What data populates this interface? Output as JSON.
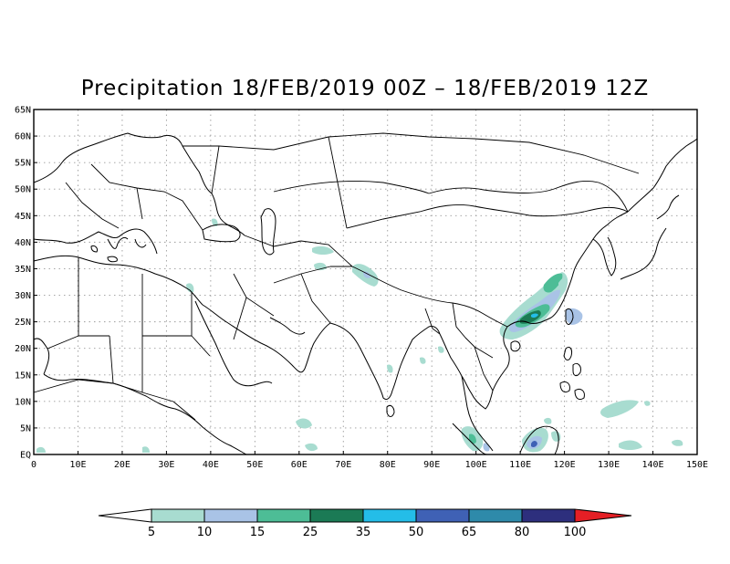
{
  "title": "Precipitation 18/FEB/2019 00Z – 18/FEB/2019 12Z",
  "map": {
    "lon_range": [
      0,
      150
    ],
    "lat_range": [
      0,
      65
    ],
    "grid": "dotted",
    "lon_labels": [
      "0",
      "10E",
      "20E",
      "30E",
      "40E",
      "50E",
      "60E",
      "70E",
      "80E",
      "90E",
      "100E",
      "110E",
      "120E",
      "130E",
      "140E",
      "150E"
    ],
    "lat_labels": [
      "EQ",
      "5N",
      "10N",
      "15N",
      "20N",
      "25N",
      "30N",
      "35N",
      "40N",
      "45N",
      "50N",
      "55N",
      "60N",
      "65N"
    ]
  },
  "colorbar": {
    "levels": [
      "5",
      "10",
      "15",
      "25",
      "35",
      "50",
      "65",
      "80",
      "100"
    ],
    "colors": [
      "#ffffff",
      "#a8dcd0",
      "#a9c3e6",
      "#4dbd96",
      "#1b7a55",
      "#24bde8",
      "#3f61b5",
      "#2e8aaa",
      "#2d2f7d",
      "#e51f25"
    ]
  },
  "precip_regions": [
    {
      "name": "south-china-band",
      "level": "10-35"
    },
    {
      "name": "east-china-sea",
      "level": "5-15"
    },
    {
      "name": "borneo",
      "level": "5-50"
    },
    {
      "name": "sumatra-malaya",
      "level": "5-25"
    },
    {
      "name": "himalaya-west",
      "level": "5-15"
    },
    {
      "name": "pacific-east-philippines",
      "level": "5-10"
    },
    {
      "name": "levant",
      "level": "5-10"
    }
  ]
}
